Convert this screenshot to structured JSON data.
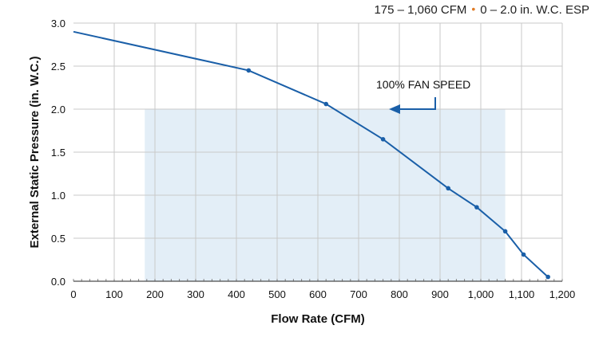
{
  "header": {
    "range_cfm": "175 – 1,060 CFM",
    "separator": "•",
    "range_esp": "0 – 2.0 in. W.C. ESP"
  },
  "chart_data": {
    "type": "line",
    "title": "",
    "xlabel": "Flow Rate (CFM)",
    "ylabel": "External Static Pressure (in. W.C.)",
    "xlim": [
      0,
      1200
    ],
    "ylim": [
      0,
      3.0
    ],
    "grid": true,
    "x_ticks": [
      0,
      100,
      200,
      300,
      400,
      500,
      600,
      700,
      800,
      900,
      1000,
      1100,
      1200
    ],
    "x_tick_labels": [
      "0",
      "100",
      "200",
      "300",
      "400",
      "500",
      "600",
      "700",
      "800",
      "900",
      "1,000",
      "1,100",
      "1,200"
    ],
    "y_ticks": [
      0,
      0.5,
      1.0,
      1.5,
      2.0,
      2.5,
      3.0
    ],
    "y_tick_labels": [
      "0.0",
      "0.5",
      "1.0",
      "1.5",
      "2.0",
      "2.5",
      "3.0"
    ],
    "series": [
      {
        "name": "100% Fan Speed",
        "color": "#1a5fa8",
        "x": [
          0,
          430,
          620,
          760,
          920,
          990,
          1060,
          1105,
          1165
        ],
        "y": [
          2.9,
          2.45,
          2.06,
          1.65,
          1.08,
          0.86,
          0.58,
          0.31,
          0.05
        ]
      }
    ],
    "operating_region": {
      "x_range": [
        175,
        1060
      ],
      "y_range": [
        0,
        2.0
      ],
      "color": "#e3eef7"
    },
    "annotation": {
      "text": "100% FAN SPEED",
      "points_to": "curve"
    }
  }
}
